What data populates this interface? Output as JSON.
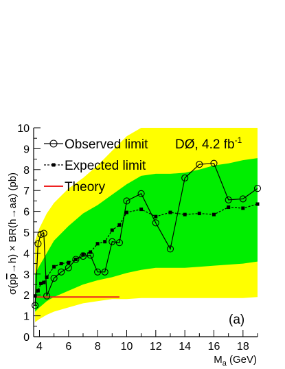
{
  "chart_data": {
    "type": "line",
    "title": "",
    "xlabel": "M_a (GeV)",
    "ylabel": "σ(pp̄→h) × BR(h→aa) (pb)",
    "xlim": [
      3.6,
      19.0
    ],
    "ylim": [
      0,
      10
    ],
    "x_ticks": [
      "4",
      "6",
      "8",
      "10",
      "12",
      "14",
      "16",
      "18"
    ],
    "y_ticks": [
      "0",
      "1",
      "2",
      "3",
      "4",
      "5",
      "6",
      "7",
      "8",
      "9",
      "10"
    ],
    "grid": false,
    "legend_position": "top-left",
    "experiment_label": "DØ, 4.2 fb",
    "experiment_label_superscript": "-1",
    "panel_label": "(a)",
    "colors": {
      "band_2sigma": "#ffff00",
      "band_1sigma": "#00ee00",
      "observed": "#000000",
      "expected": "#000000",
      "theory": "#ee2222"
    },
    "series": [
      {
        "name": "Observed limit",
        "style": "solid line, open circle markers",
        "x": [
          3.7,
          3.9,
          4.1,
          4.3,
          4.5,
          5.0,
          5.5,
          6.0,
          6.5,
          7.0,
          7.5,
          8.0,
          8.5,
          9.0,
          9.5,
          10.0,
          11.0,
          12.0,
          13.0,
          14.0,
          15.0,
          16.0,
          17.0,
          18.0,
          19.0
        ],
        "y": [
          1.5,
          4.45,
          4.9,
          4.95,
          1.95,
          2.8,
          3.1,
          3.3,
          3.7,
          3.85,
          3.9,
          3.1,
          3.1,
          4.55,
          4.5,
          6.5,
          6.85,
          5.45,
          4.2,
          7.6,
          8.25,
          8.3,
          6.55,
          6.6,
          7.1
        ]
      },
      {
        "name": "Expected limit",
        "style": "dashed line, filled square markers",
        "x": [
          3.7,
          3.9,
          4.1,
          4.3,
          4.5,
          5.0,
          5.5,
          6.0,
          6.5,
          7.0,
          7.5,
          8.0,
          8.5,
          9.0,
          9.5,
          10.0,
          11.0,
          12.0,
          13.0,
          14.0,
          15.0,
          16.0,
          17.0,
          18.0,
          19.0
        ],
        "y": [
          1.95,
          2.2,
          2.55,
          2.6,
          2.85,
          3.35,
          3.5,
          3.55,
          3.7,
          3.95,
          4.05,
          4.45,
          4.55,
          5.1,
          5.35,
          5.95,
          6.1,
          5.75,
          5.95,
          5.85,
          5.9,
          5.85,
          6.2,
          6.15,
          6.35
        ]
      },
      {
        "name": "Theory",
        "style": "solid red line",
        "x": [
          3.7,
          9.5
        ],
        "y": [
          1.9,
          1.9
        ]
      }
    ],
    "bands": {
      "x": [
        3.7,
        4.0,
        4.5,
        5.0,
        6.0,
        7.0,
        8.0,
        9.0,
        10.0,
        11.0,
        12.0,
        13.0,
        14.0,
        15.0,
        16.0,
        17.0,
        18.0,
        19.0
      ],
      "lo_2sigma": [
        0.7,
        0.85,
        1.05,
        1.2,
        1.4,
        1.6,
        1.7,
        1.8,
        1.8,
        1.85,
        1.85,
        1.85,
        1.85,
        1.85,
        1.85,
        1.85,
        1.85,
        1.9
      ],
      "lo_1sigma": [
        1.2,
        1.4,
        1.7,
        1.9,
        2.2,
        2.5,
        2.7,
        2.85,
        3.05,
        3.2,
        3.3,
        3.3,
        3.3,
        3.35,
        3.4,
        3.45,
        3.5,
        3.6
      ],
      "hi_1sigma": [
        3.0,
        3.4,
        4.0,
        4.6,
        5.3,
        5.9,
        6.3,
        6.8,
        7.3,
        7.7,
        7.8,
        7.8,
        7.85,
        8.0,
        8.2,
        8.3,
        8.45,
        8.55
      ],
      "hi_2sigma": [
        4.6,
        5.2,
        5.9,
        6.4,
        7.1,
        7.6,
        8.2,
        8.9,
        9.6,
        10.0,
        10.0,
        10.0,
        10.0,
        10.0,
        10.0,
        10.0,
        10.0,
        10.0
      ]
    }
  }
}
